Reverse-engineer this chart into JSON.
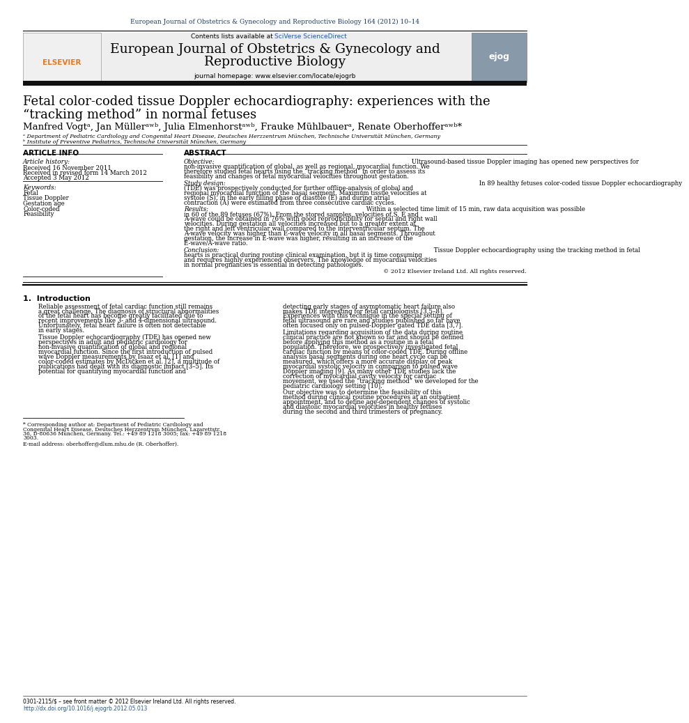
{
  "page_width": 9.92,
  "page_height": 13.23,
  "bg_color": "#ffffff",
  "top_journal_line": "European Journal of Obstetrics & Gynecology and Reproductive Biology 164 (2012) 10–14",
  "top_journal_color": "#1a3a6b",
  "contents_line": "Contents lists available at SciVerse ScienceDirect",
  "contents_sciverse_color": "#2255aa",
  "journal_title_line1": "European Journal of Obstetrics & Gynecology and",
  "journal_title_line2": "Reproductive Biology",
  "journal_homepage": "journal homepage: www.elsevier.com/locate/ejogrb",
  "header_bg": "#eeeeee",
  "black_bar_color": "#111111",
  "article_title_line1": "Fetal color-coded tissue Doppler echocardiography: experiences with the",
  "article_title_line2": "“tracking method” in normal fetuses",
  "authors_text": "Manfred Vogtᵃ, Jan Müllerᵃʷᵇ, Julia Elmenhorstᵃʷᵇ, Frauke Mühlbauerᵃ, Renate Oberhofferᵃʷᵇ*",
  "affil_a": "ᵃ Department of Pediatric Cardiology and Congenital Heart Disease, Deutsches Herzzentrum München, Technische Universität München, Germany",
  "affil_b": "ᵇ Institute of Preventive Pediatrics, Technische Universität München, Germany",
  "section_article_info": "ARTICLE INFO",
  "section_abstract": "ABSTRACT",
  "article_history_label": "Article history:",
  "received1": "Received 16 November 2011",
  "received2": "Received in revised form 14 March 2012",
  "accepted": "Accepted 3 May 2012",
  "keywords_label": "Keywords:",
  "keywords": [
    "Fetal",
    "Tissue Doppler",
    "Gestation age",
    "Color-coded",
    "Feasibility"
  ],
  "abstract_objective_label": "Objective:",
  "abstract_objective": "Ultrasound-based tissue Doppler imaging has opened new perspectives for non-invasive quantification of global, as well as regional, myocardial function. We therefore studied fetal hearts using the “tracking method” in order to assess its feasibility and changes of fetal myocardial velocities throughout gestation.",
  "abstract_study_label": "Study design:",
  "abstract_study": "In 89 healthy fetuses color-coded tissue Doppler echocardiography (TDE) was prospectively conducted for further offline-analysis of global and regional myocardial function of the basal segment. Maximum tissue velocities at systole (S), in the early filling phase of diastole (E) and during atrial contraction (A) were estimated from three consecutive cardiac cycles.",
  "abstract_results_label": "Results:",
  "abstract_results": "Within a selected time limit of 15 min, raw data acquisition was possible in 60 of the 89 fetuses (67%). From the stored samples, velocities of S, E and A-wave could be obtained in 76% with good reproducibility for septal and right wall velocities. During gestation all velocities increased but to a greater extent at the right and left ventricular wall compared to the interventricular septum. The A-wave velocity was higher than E-wave velocity in all basal segments. Throughout gestation, the increase in E-wave was higher, resulting in an increase of the E-wave/A-wave ratio.",
  "abstract_conclusion_label": "Conclusion:",
  "abstract_conclusion": "Tissue Doppler echocardiography using the tracking method in fetal hearts is practical during routine clinical examination, but it is time consuming and requires highly experienced observers. The knowledge of myocardial velocities in normal pregnancies is essential in detecting pathologies.",
  "abstract_copyright": "© 2012 Elsevier Ireland Ltd. All rights reserved.",
  "intro_heading": "1.  Introduction",
  "intro_col1_para1": "Reliable assessment of fetal cardiac function still remains a great challenge. The diagnosis of structural abnormalities of the fetal heart has become greatly facilitated due to recent improvements like 3- and 4-dimensional ultrasound. Unfortunately, fetal heart failure is often not detectable in early stages.",
  "intro_col1_para2": "Tissue Doppler echocardiography (TDE) has opened new perspectives in adult and pediatric cardiology for non-invasive quantification of global and regional myocardial function. Since the first introduction of pulsed wave Doppler measurements by Isaaz et al. [1] and color-coded estimates by McDicken et al. [2], a multitude of publications had dealt with its diagnostic impact [3–5]. Its potential for quantifying myocardial function and",
  "intro_col2_para1": "detecting early stages of asymptomatic heart failure also makes TDE interesting for fetal cardiologists [3,5–8]. Experiences with this technique in the special setting of fetal ultrasound are rare and studies published so far have often focused only on pulsed-Doppler gated TDE data [3,7].",
  "intro_col2_para2": "Limitations regarding acquisition of the data during routine clinical practice are not known so far and should be defined before applying this method as a routine in a fetal population. Therefore, we prospectively investigated fetal cardiac function by means of color-coded TDE. During offline analysis basal segments during one heart cycle can be measured, which offers a more accurate display of peak myocardial systolic velocity in comparison to pulsed wave Doppler imaging [9]. As many other TDE studies lack the correction of myocardial cavity velocity for cardiac movement, we used the “tracking method” we developed for the pediatric cardiology setting [10].",
  "intro_col2_para3": "Our objective was to determine the feasibility of this method during clinical routine procedures at an outpatient appointment, and to define age-dependent changes of systolic and diastolic myocardial velocities in healthy fetuses during the second and third trimesters of pregnancy.",
  "footnote_star": "Corresponding author at: Department of Pediatric Cardiology and Congenital Heart Disease, Deutsches Herzzentrum München, Lazarettstr. 36, D-80636 München, Germany. Tel.: +49 89 1218 3005; fax: +49 89 1218 3003.",
  "footnote_email": "E-mail address: oberhoffer@dlum.mhu.de (R. Oberhoffer).",
  "bottom_line1": "0301-2115/$ – see front matter © 2012 Elsevier Ireland Ltd. All rights reserved.",
  "bottom_line2": "http://dx.doi.org/10.1016/j.ejogrb.2012.05.013",
  "bottom_link_color": "#2255aa"
}
